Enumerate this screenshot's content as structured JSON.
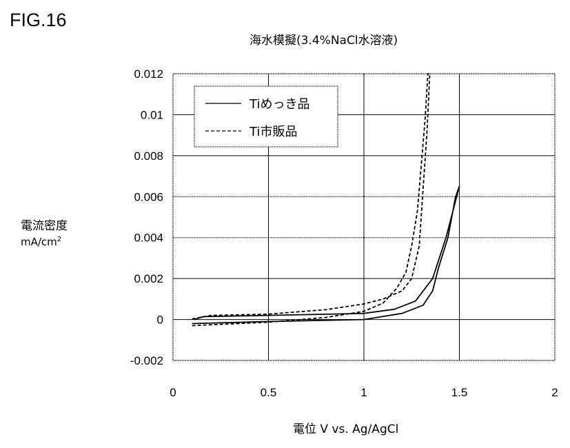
{
  "figure_label": "FIG.16",
  "chart_data": {
    "type": "line",
    "title": "海水模擬(3.4%NaCl水溶液)",
    "xlabel": "電位 V vs. Ag/AgCl",
    "ylabel": "電流密度",
    "ylabel_unit": "mA/cm",
    "ylabel_unit_sup": "2",
    "xlim": [
      0,
      2
    ],
    "ylim": [
      -0.002,
      0.012
    ],
    "xticks": [
      "0",
      "0.5",
      "1",
      "1.5",
      "2"
    ],
    "yticks": [
      "-0.002",
      "0",
      "0.002",
      "0.004",
      "0.006",
      "0.008",
      "0.01",
      "0.012"
    ],
    "grid": true,
    "legend_position": "top-left",
    "series": [
      {
        "name": "Tiめっき品",
        "style": "solid",
        "x": [
          0.1,
          0.5,
          1.0,
          1.2,
          1.31,
          1.36,
          1.39,
          1.44,
          1.48,
          1.5,
          1.43,
          1.36,
          1.27,
          1.16,
          1.0,
          0.5,
          0.16,
          0.11
        ],
        "y": [
          -0.0002,
          -0.0001,
          0.0,
          0.0003,
          0.0007,
          0.0014,
          0.0025,
          0.004,
          0.006,
          0.0065,
          0.004,
          0.002,
          0.0009,
          0.0005,
          0.0003,
          0.0002,
          0.00014,
          0.0
        ]
      },
      {
        "name": "Ti市販品",
        "style": "dashed",
        "x": [
          0.1,
          0.5,
          0.8,
          1.0,
          1.1,
          1.17,
          1.22,
          1.25,
          1.28,
          1.3,
          1.32,
          1.335,
          1.345,
          1.33,
          1.31,
          1.29,
          1.25,
          1.2,
          1.1,
          1.0,
          0.8,
          0.5,
          0.2,
          0.1
        ],
        "y": [
          -0.0003,
          -0.00013,
          0.0001,
          0.0004,
          0.0008,
          0.0015,
          0.0023,
          0.0036,
          0.0053,
          0.0075,
          0.0097,
          0.012,
          0.012,
          0.0091,
          0.0064,
          0.0036,
          0.002,
          0.0014,
          0.001,
          0.00076,
          0.00048,
          0.00026,
          0.0002,
          3e-05
        ]
      }
    ]
  }
}
